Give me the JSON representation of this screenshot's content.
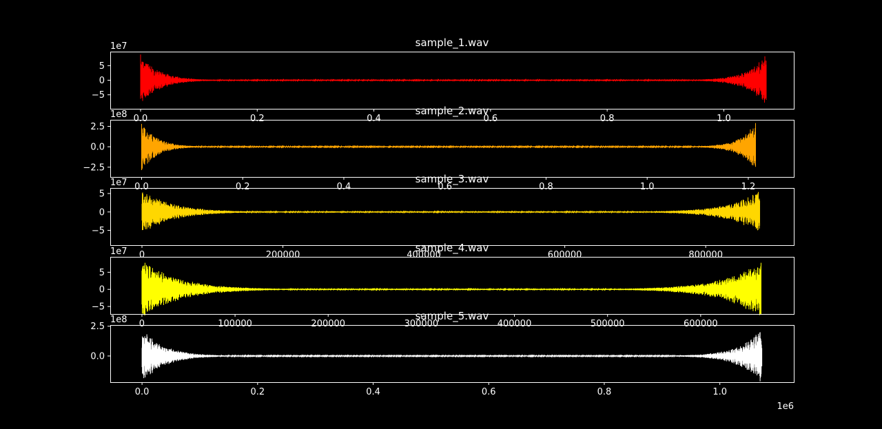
{
  "chart_data": [
    {
      "type": "line",
      "title": "sample_1.wav",
      "color": "#ff0000",
      "xlim": [
        -0.052,
        1.12
      ],
      "ylim": [
        -9.8,
        9.8
      ],
      "x_max": 1.073,
      "y_offset_label": "1e7",
      "x_offset_label": "",
      "x_ticks": [
        0.0,
        0.2,
        0.4,
        0.6,
        0.8,
        1.0
      ],
      "x_tick_labels": [
        "0.0",
        "0.2",
        "0.4",
        "0.6",
        "0.8",
        "1.0"
      ],
      "y_ticks": [
        5,
        0,
        -5
      ],
      "y_tick_labels": [
        "5",
        "0",
        "−5"
      ],
      "envelope": {
        "start_peak": 9.0,
        "end_peak": 9.2,
        "decay": 0.03,
        "baseline": 0.3
      },
      "series": [
        {
          "values_note": "",
          "x_range": [
            0.0,
            1.073
          ]
        }
      ]
    },
    {
      "type": "line",
      "title": "sample_2.wav",
      "color": "#ffa500",
      "xlim": [
        -0.062,
        1.29
      ],
      "ylim": [
        -3.7,
        3.3
      ],
      "x_max": 1.215,
      "y_offset_label": "1e8",
      "x_offset_label": "",
      "x_ticks": [
        0.0,
        0.2,
        0.4,
        0.6,
        0.8,
        1.0,
        1.2
      ],
      "x_tick_labels": [
        "0.0",
        "0.2",
        "0.4",
        "0.6",
        "0.8",
        "1.0",
        "1.2"
      ],
      "y_ticks": [
        2.5,
        0.0,
        -2.5
      ],
      "y_tick_labels": [
        "2.5",
        "0.0",
        "−2.5"
      ],
      "envelope": {
        "start_peak": 3.1,
        "end_peak": 3.1,
        "decay": 0.025,
        "baseline": 0.08
      },
      "series": [
        {
          "values_note": "",
          "x_range": [
            0.0,
            1.215
          ]
        }
      ]
    },
    {
      "type": "line",
      "title": "sample_3.wav",
      "color": "#ffd700",
      "xlim": [
        -45000,
        925000
      ],
      "ylim": [
        -9.0,
        6.5
      ],
      "x_max": 877000,
      "y_offset_label": "1e7",
      "x_offset_label": "",
      "x_ticks": [
        0,
        200000,
        400000,
        600000,
        800000
      ],
      "x_tick_labels": [
        "0",
        "200000",
        "400000",
        "600000",
        "800000"
      ],
      "y_ticks": [
        5,
        0,
        -5
      ],
      "y_tick_labels": [
        "5",
        "0",
        "−5"
      ],
      "envelope": {
        "start_peak": 6.0,
        "end_peak": 6.0,
        "decay": 0.05,
        "baseline": 0.25
      },
      "series": [
        {
          "values_note": "",
          "x_range": [
            0,
            877000
          ]
        }
      ]
    },
    {
      "type": "line",
      "title": "sample_4.wav",
      "color": "#ffff00",
      "xlim": [
        -34000,
        700000
      ],
      "ylim": [
        -7.2,
        9.5
      ],
      "x_max": 665000,
      "y_offset_label": "1e7",
      "x_offset_label": "",
      "x_ticks": [
        0,
        100000,
        200000,
        300000,
        400000,
        500000,
        600000
      ],
      "x_tick_labels": [
        "0",
        "100000",
        "200000",
        "300000",
        "400000",
        "500000",
        "600000"
      ],
      "y_ticks": [
        5,
        0,
        -5
      ],
      "y_tick_labels": [
        "5",
        "0",
        "−5"
      ],
      "envelope": {
        "start_peak": 8.8,
        "end_peak": 8.8,
        "decay": 0.06,
        "baseline": 0.25
      },
      "series": [
        {
          "values_note": "",
          "x_range": [
            0,
            665000
          ]
        }
      ]
    },
    {
      "type": "line",
      "title": "sample_5.wav",
      "color": "#ffffff",
      "xlim": [
        -0.055,
        1.128
      ],
      "ylim": [
        -2.2,
        2.6
      ],
      "x_max": 1.073,
      "y_offset_label": "1e8",
      "x_offset_label": "1e6",
      "x_ticks": [
        0.0,
        0.2,
        0.4,
        0.6,
        0.8,
        1.0
      ],
      "x_tick_labels": [
        "0.0",
        "0.2",
        "0.4",
        "0.6",
        "0.8",
        "1.0"
      ],
      "y_ticks": [
        2.5,
        0.0
      ],
      "y_tick_labels": [
        "2.5",
        "0.0"
      ],
      "envelope": {
        "start_peak": 2.4,
        "end_peak": 2.4,
        "decay": 0.035,
        "baseline": 0.05
      },
      "series": [
        {
          "values_note": "",
          "x_range": [
            0.0,
            1.073
          ]
        }
      ]
    }
  ]
}
